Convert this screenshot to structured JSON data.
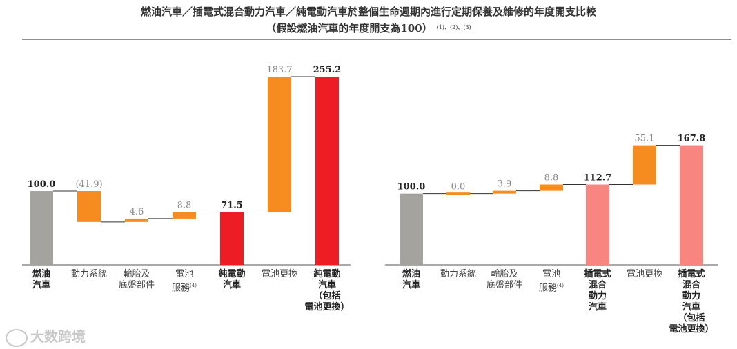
{
  "title": "燃油汽車／插電式混合動力汽車／純電動汽車於整個生命週期內進行定期保養及維修的年度開支比較",
  "subtitle": "（假設燃油汽車的年度開支為100）",
  "subtitle_notes": "(1)、(2)、(3)",
  "watermark": "大数跨境",
  "colors": {
    "fuel": "#a5a39f",
    "component": "#f68b1f",
    "bev_total": "#ee1d23",
    "phev_total": "#f88580",
    "connector": "#333333"
  },
  "chart_data": [
    {
      "type": "waterfall",
      "categories": [
        "燃油\n汽車",
        "動力系統",
        "輪胎及\n底盤部件",
        "電池\n服務",
        "純電動\n汽車",
        "電池更換",
        "純電動\n汽車\n（包括\n電池更換）"
      ],
      "category_notes": [
        "",
        "",
        "",
        "(4)",
        "",
        "",
        ""
      ],
      "bold_categories": [
        true,
        false,
        false,
        false,
        true,
        false,
        true
      ],
      "bars": [
        {
          "kind": "total",
          "value": 100.0,
          "label": "100.0",
          "color_key": "fuel"
        },
        {
          "kind": "delta",
          "value": -41.9,
          "label": "(41.9)",
          "color_key": "component"
        },
        {
          "kind": "delta",
          "value": 4.6,
          "label": "4.6",
          "color_key": "component"
        },
        {
          "kind": "delta",
          "value": 8.8,
          "label": "8.8",
          "color_key": "component"
        },
        {
          "kind": "total",
          "value": 71.5,
          "label": "71.5",
          "color_key": "bev_total"
        },
        {
          "kind": "delta",
          "value": 183.7,
          "label": "183.7",
          "color_key": "component"
        },
        {
          "kind": "total",
          "value": 255.2,
          "label": "255.2",
          "color_key": "bev_total"
        }
      ],
      "ylim": [
        0,
        255.2
      ]
    },
    {
      "type": "waterfall",
      "categories": [
        "燃油\n汽車",
        "動力系統",
        "輪胎及\n底盤部件",
        "電池\n服務",
        "插電式\n混合\n動力\n汽車",
        "電池更換",
        "插電式\n混合\n動力\n汽車\n（包括\n電池更換）"
      ],
      "category_notes": [
        "",
        "",
        "",
        "(4)",
        "",
        "",
        ""
      ],
      "bold_categories": [
        true,
        false,
        false,
        false,
        true,
        false,
        true
      ],
      "bars": [
        {
          "kind": "total",
          "value": 100.0,
          "label": "100.0",
          "color_key": "fuel"
        },
        {
          "kind": "delta",
          "value": 0.0,
          "label": "0.0",
          "color_key": "component"
        },
        {
          "kind": "delta",
          "value": 3.9,
          "label": "3.9",
          "color_key": "component"
        },
        {
          "kind": "delta",
          "value": 8.8,
          "label": "8.8",
          "color_key": "component"
        },
        {
          "kind": "total",
          "value": 112.7,
          "label": "112.7",
          "color_key": "phev_total"
        },
        {
          "kind": "delta",
          "value": 55.1,
          "label": "55.1",
          "color_key": "component"
        },
        {
          "kind": "total",
          "value": 167.8,
          "label": "167.8",
          "color_key": "phev_total"
        }
      ],
      "ylim": [
        0,
        167.8
      ]
    }
  ]
}
